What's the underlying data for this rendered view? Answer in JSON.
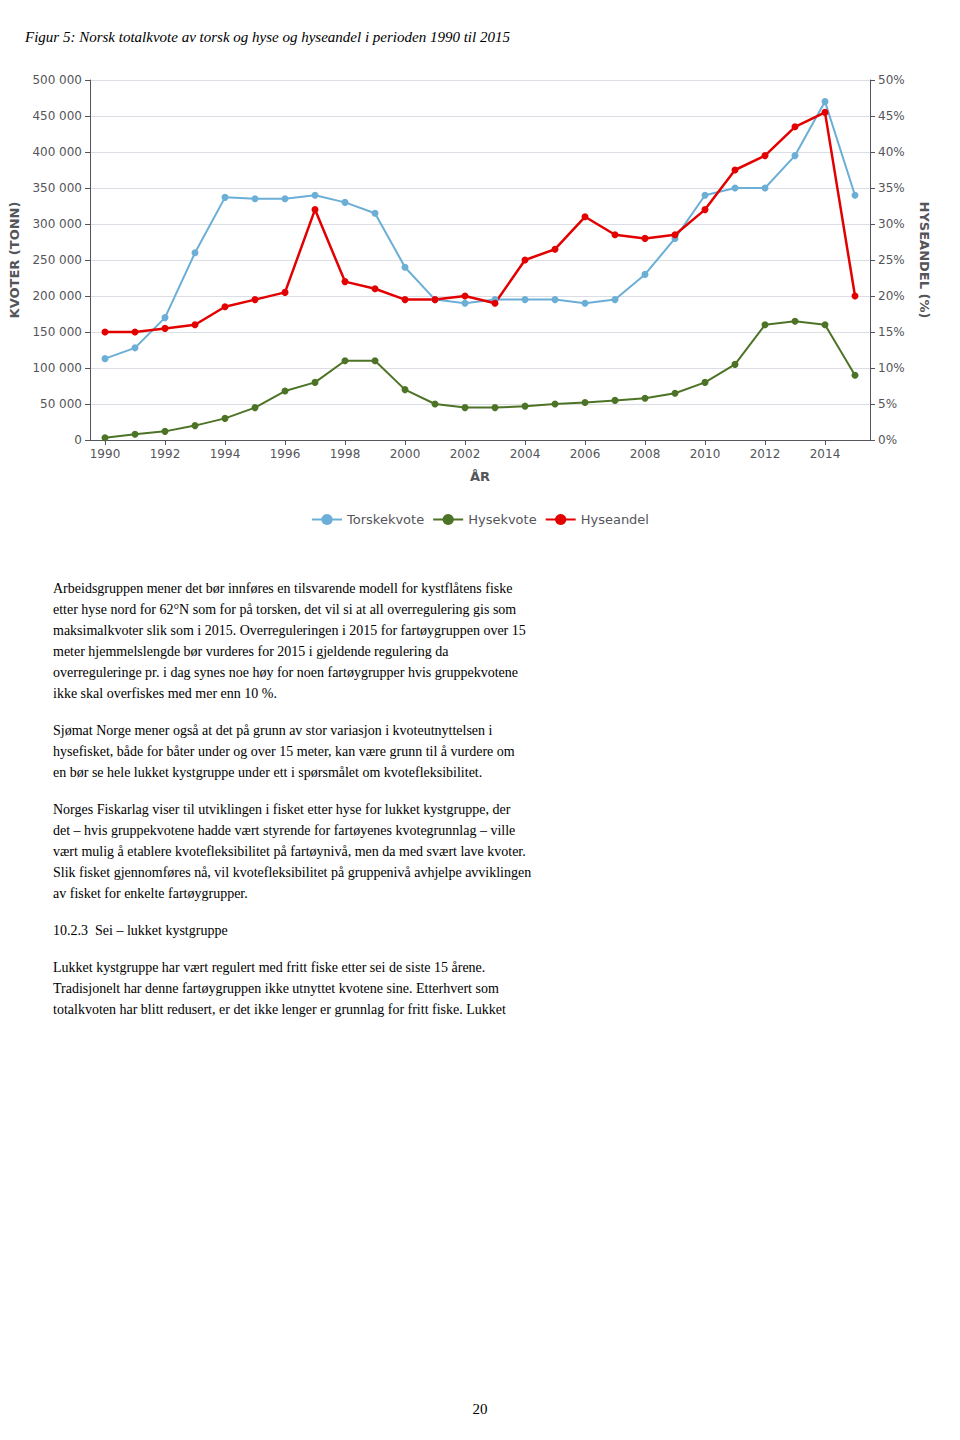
{
  "chart_data": {
    "type": "line",
    "title": "Figur 5: Norsk totalkvote av torsk og hyse og hyseandel i perioden 1990 til 2015",
    "xlabel": "ÅR",
    "ylabel": "KVOTER (TONN)",
    "y2label": "HYSEANDEL (%)",
    "x": [
      1990,
      1991,
      1992,
      1993,
      1994,
      1995,
      1996,
      1997,
      1998,
      1999,
      2000,
      2001,
      2002,
      2003,
      2004,
      2005,
      2006,
      2007,
      2008,
      2009,
      2010,
      2011,
      2012,
      2013,
      2014,
      2015
    ],
    "series": [
      {
        "name": "Torskekvote",
        "color": "#6baed6",
        "values": [
          113000,
          128000,
          170000,
          260000,
          337000,
          335000,
          335000,
          340000,
          330000,
          315000,
          240000,
          195000,
          190000,
          195000,
          195000,
          195000,
          190000,
          195000,
          230000,
          280000,
          340000,
          350000,
          350000,
          395000,
          470000,
          340000
        ]
      },
      {
        "name": "Hysekvote",
        "color": "#4d7326",
        "values": [
          3000,
          8000,
          12000,
          20000,
          30000,
          45000,
          68000,
          80000,
          110000,
          110000,
          70000,
          50000,
          45000,
          45000,
          47000,
          50000,
          52000,
          55000,
          58000,
          65000,
          80000,
          105000,
          160000,
          165000,
          160000,
          90000
        ]
      },
      {
        "name": "Hyseandel",
        "color": "#e30000",
        "axis": "y2",
        "values": [
          0.15,
          0.15,
          0.155,
          0.16,
          0.185,
          0.195,
          0.205,
          0.32,
          0.22,
          0.21,
          0.195,
          0.195,
          0.2,
          0.19,
          0.25,
          0.265,
          0.31,
          0.285,
          0.28,
          0.285,
          0.32,
          0.375,
          0.395,
          0.435,
          0.455,
          0.2
        ]
      }
    ],
    "xlim": [
      1989.5,
      2015.5
    ],
    "xticks": [
      1990,
      1992,
      1994,
      1996,
      1998,
      2000,
      2002,
      2004,
      2006,
      2008,
      2010,
      2012,
      2014
    ],
    "ylim": [
      0,
      500000
    ],
    "yticks": [
      0,
      {
        "value": 50000,
        "label": "50 000"
      },
      {
        "value": 100000,
        "label": "100 000"
      },
      {
        "value": 150000,
        "label": "150 000"
      },
      {
        "value": 200000,
        "label": "200 000"
      },
      {
        "value": 250000,
        "label": "250 000"
      },
      {
        "value": 300000,
        "label": "300 000"
      },
      {
        "value": 350000,
        "label": "350 000"
      },
      {
        "value": 400000,
        "label": "400 000"
      },
      {
        "value": 450000,
        "label": "450 000"
      },
      {
        "value": 500000,
        "label": "500 000"
      }
    ],
    "y2lim": [
      0,
      0.5
    ],
    "y2ticks": [
      {
        "value": 0.0,
        "label": "0%"
      },
      {
        "value": 0.05,
        "label": "5%"
      },
      {
        "value": 0.1,
        "label": "10%"
      },
      {
        "value": 0.15,
        "label": "15%"
      },
      {
        "value": 0.2,
        "label": "20%"
      },
      {
        "value": 0.25,
        "label": "25%"
      },
      {
        "value": 0.3,
        "label": "30%"
      },
      {
        "value": 0.35,
        "label": "35%"
      },
      {
        "value": 0.4,
        "label": "40%"
      },
      {
        "value": 0.45,
        "label": "45%"
      },
      {
        "value": 0.5,
        "label": "50%"
      }
    ],
    "grid": true,
    "legend": "bottom",
    "marker": "circle",
    "annotations": [
      "Arbeidsgruppen mener det bør innføres en tilsvarende modell for kystflåtens fiske\netter hyse nord for 62°N som for på torsken, det vil si at all overregulering gis som\nmaksimalkvoter slik som i 2015. Overreguleringen i 2015 for fartøygruppen over 15\nmeter hjemmelslengde bør vurderes for 2015 i gjeldende regulering da\noverreguleringe pr. i dag synes noe høy for noen fartøygrupper hvis gruppekvotene\nikke skal overfiskes med mer enn 10 %.",
      "Sjømat Norge mener også at det på grunn av stor variasjon i kvoteutnyttelsen i\nhysefisket, både for båter under og over 15 meter, kan være grunn til å vurdere om\nen bør se hele lukket kystgruppe under ett i spørsmålet om kvotefleksibilitet.",
      "Norges Fiskarlag viser til utviklingen i fisket etter hyse for lukket kystgruppe, der\ndet – hvis gruppekvotene hadde vært styrende for fartøyenes kvotegrunnlag – ville\nvært mulig å etablere kvotefleksibilitet på fartøynivå, men da med svært lave kvoter.\nSlik fisket gjennomføres nå, vil kvotefleksibilitet på gruppenivå avhjelpe avviklingen\nav fisket for enkelte fartøygrupper.",
      "10.2.3  Sei – lukket kystgruppe",
      "Lukket kystgruppe har vært regulert med fritt fiske etter sei de siste 15 årene.\nTradisjonelt har denne fartøygruppen ikke utnyttet kvotene sine. Etterhvert som\ntotalkvoten har blitt redusert, er det ikke lenger er grunnlag for fritt fiske. Lukket"
    ],
    "page_number": "20"
  }
}
